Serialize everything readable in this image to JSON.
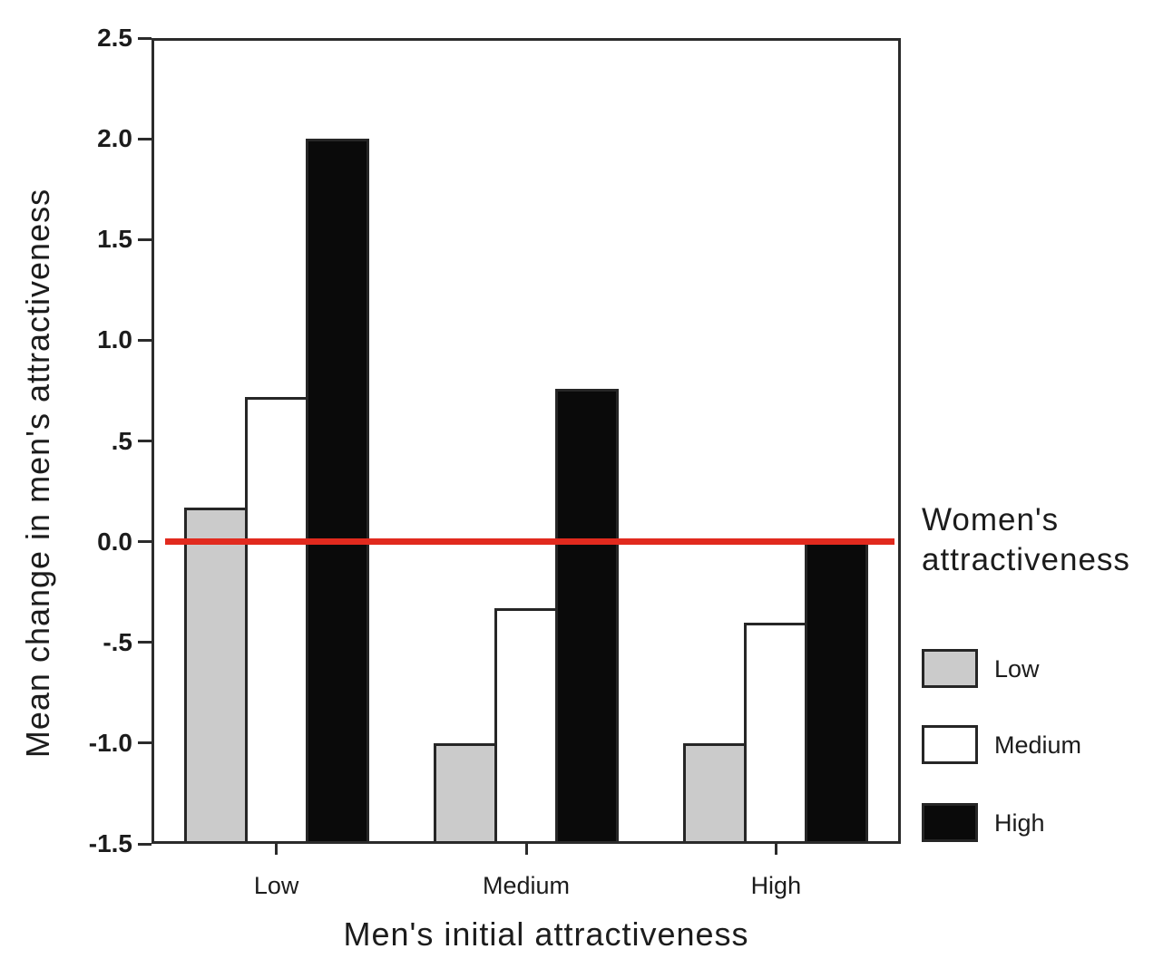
{
  "chart_data": {
    "type": "bar",
    "title": "",
    "xlabel": "Men's initial attractiveness",
    "ylabel": "Mean change in men's attractiveness",
    "categories": [
      "Low",
      "Medium",
      "High"
    ],
    "series": [
      {
        "name": "Low",
        "color": "#cbcbcb",
        "values": [
          0.17,
          -1.0,
          -1.0
        ]
      },
      {
        "name": "Medium",
        "color": "#ffffff",
        "values": [
          0.72,
          -0.33,
          -0.4
        ]
      },
      {
        "name": "High",
        "color": "#0a0a0a",
        "values": [
          2.0,
          0.76,
          0.0
        ]
      }
    ],
    "ylim": [
      -1.5,
      2.5
    ],
    "bar_baseline": -1.5,
    "grid": false,
    "y_ticks": [
      {
        "value": 2.5,
        "label": "2.5"
      },
      {
        "value": 2.0,
        "label": "2.0"
      },
      {
        "value": 1.5,
        "label": "1.5"
      },
      {
        "value": 1.0,
        "label": "1.0"
      },
      {
        "value": 0.5,
        "label": ".5"
      },
      {
        "value": 0.0,
        "label": "0.0"
      },
      {
        "value": -0.5,
        "label": "-.5"
      },
      {
        "value": -1.0,
        "label": "-1.0"
      },
      {
        "value": -1.5,
        "label": "-1.5"
      }
    ],
    "reference_line": {
      "value": 0.0,
      "color": "#e12a1e"
    },
    "legend": {
      "title": "Women's attractiveness",
      "position": "right",
      "items": [
        "Low",
        "Medium",
        "High"
      ]
    }
  },
  "colors": {
    "frame": "#2b2b2b",
    "bar_outline": "#262626",
    "text": "#1c1c1c",
    "background": "#ffffff",
    "reference_red": "#e12a1e",
    "series_low_gray": "#cbcbcb",
    "series_medium_white": "#ffffff",
    "series_high_black": "#0a0a0a"
  }
}
